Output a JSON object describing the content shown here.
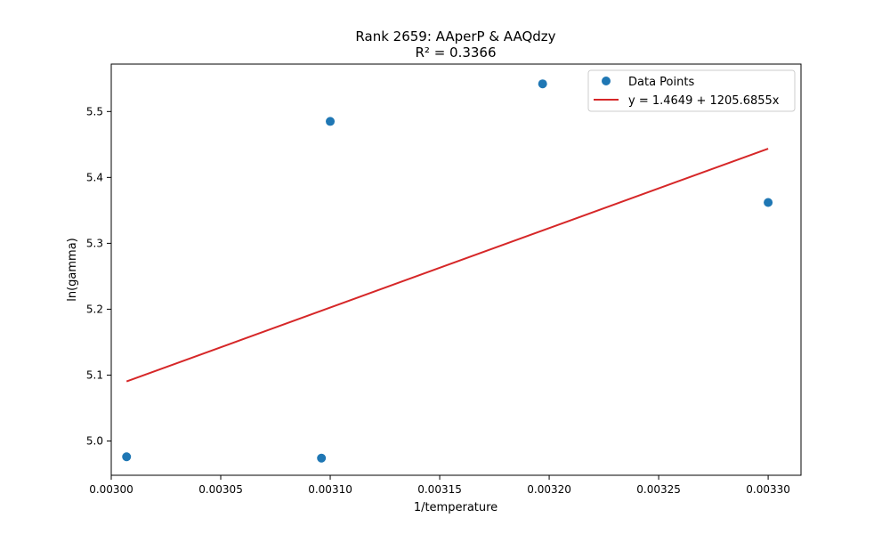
{
  "chart_data": {
    "type": "scatter",
    "title": "Rank 2659: AAperP & AAQdzy",
    "subtitle": "R² = 0.3366",
    "xlabel": "1/temperature",
    "ylabel": "ln(gamma)",
    "xlim": [
      0.003,
      0.003315
    ],
    "ylim": [
      4.948,
      5.572
    ],
    "xticks": [
      "0.00300",
      "0.00305",
      "0.00310",
      "0.00315",
      "0.00320",
      "0.00325",
      "0.00330"
    ],
    "yticks": [
      "5.0",
      "5.1",
      "5.2",
      "5.3",
      "5.4",
      "5.5"
    ],
    "grid": false,
    "legend_position": "top-right",
    "series": [
      {
        "name": "Data Points",
        "kind": "scatter",
        "color": "#1f77b4",
        "points": [
          {
            "x": 0.003007,
            "y": 4.976
          },
          {
            "x": 0.003096,
            "y": 4.974
          },
          {
            "x": 0.0031,
            "y": 5.485
          },
          {
            "x": 0.003197,
            "y": 5.542
          },
          {
            "x": 0.0033,
            "y": 5.362
          }
        ]
      },
      {
        "name": "y = 1.4649 + 1205.6855x",
        "kind": "line",
        "color": "#d62728",
        "intercept": 1.4649,
        "slope": 1205.6855,
        "x_range": [
          0.003007,
          0.0033
        ]
      }
    ]
  }
}
